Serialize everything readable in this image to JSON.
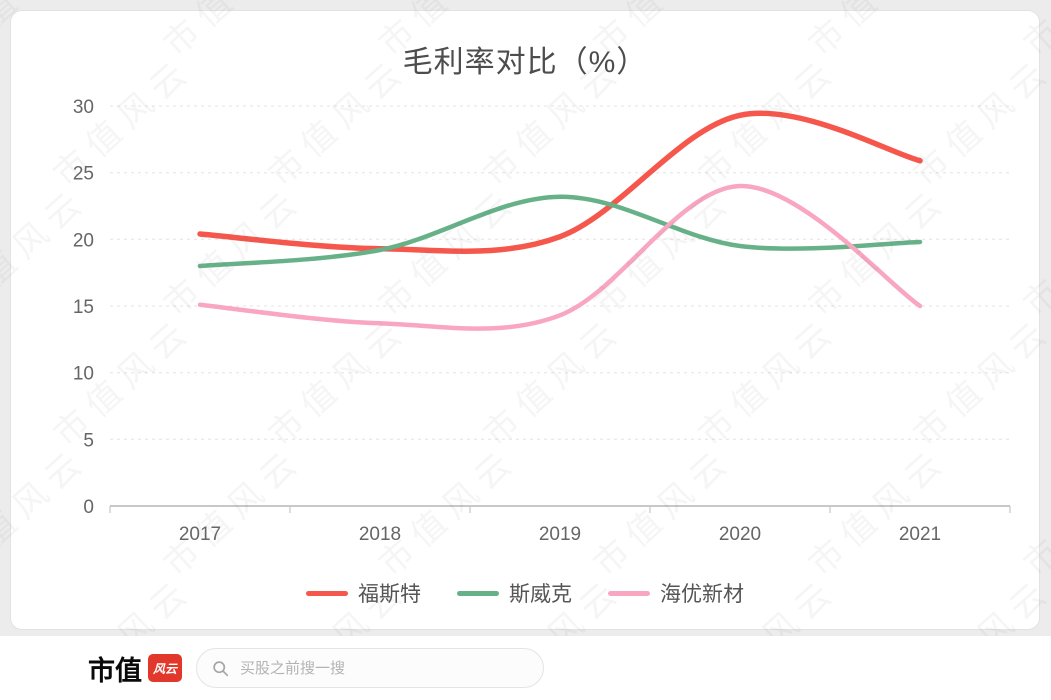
{
  "watermark": {
    "text": "市值风云"
  },
  "chart_data": {
    "type": "line",
    "title": "毛利率对比（%）",
    "categories": [
      "2017",
      "2018",
      "2019",
      "2020",
      "2021"
    ],
    "series": [
      {
        "name": "福斯特",
        "color": "#f5574c",
        "values": [
          20.4,
          19.3,
          20.2,
          29.3,
          25.9
        ]
      },
      {
        "name": "斯威克",
        "color": "#67b189",
        "values": [
          18.0,
          19.2,
          23.2,
          19.5,
          19.8
        ]
      },
      {
        "name": "海优新材",
        "color": "#f9a6c1",
        "values": [
          15.1,
          13.7,
          14.3,
          24.0,
          15.0
        ]
      }
    ],
    "ylim": [
      0,
      30
    ],
    "yticks": [
      0,
      5,
      10,
      15,
      20,
      25,
      30
    ],
    "smooth": true,
    "grid": "dashed-horizontal",
    "legend_position": "bottom"
  },
  "footer": {
    "logo_text": "市值",
    "logo_badge": "风云",
    "search_placeholder": "买股之前搜一搜"
  }
}
